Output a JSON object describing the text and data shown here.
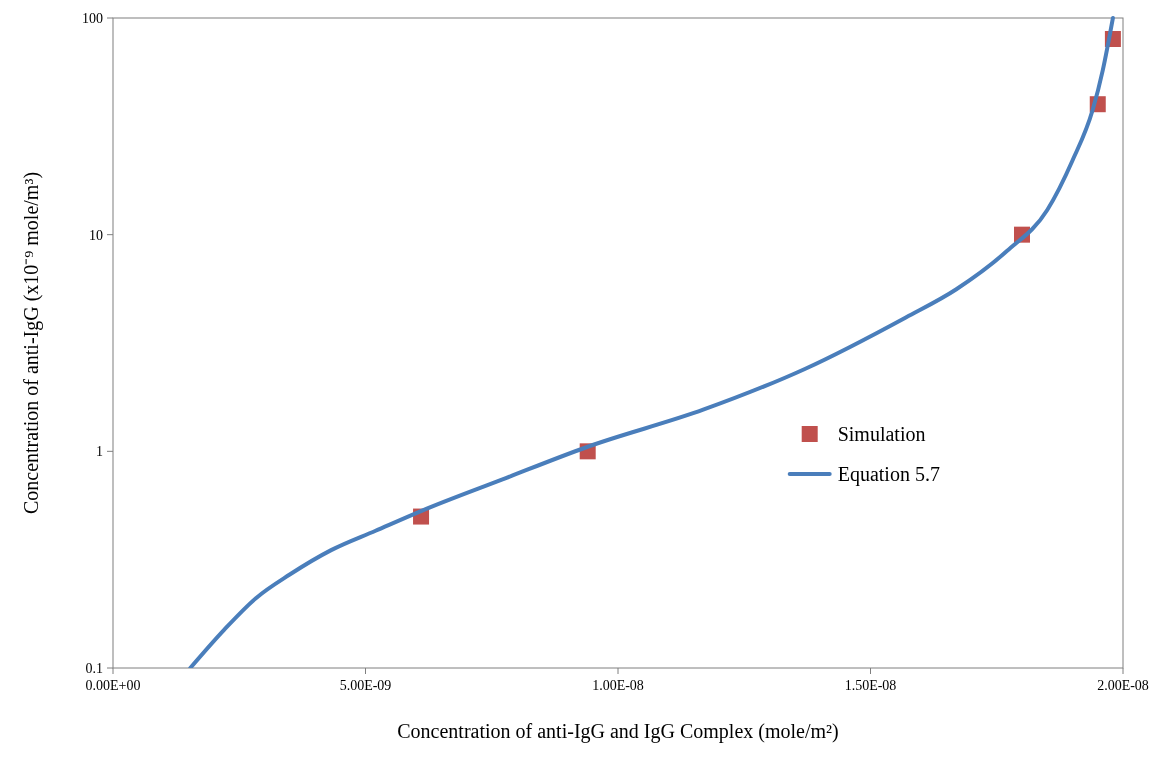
{
  "chart_data": {
    "type": "line",
    "xlabel": "Concentration of anti-IgG and IgG Complex (mole/m²)",
    "ylabel": "Concentration of anti-IgG (x10⁻⁹ mole/m³)",
    "log": "y",
    "xlim": [
      0,
      2e-08
    ],
    "ylim": [
      0.1,
      100
    ],
    "xticks": [
      {
        "value": 0,
        "label": "0.00E+00"
      },
      {
        "value": 5e-09,
        "label": "5.00E-09"
      },
      {
        "value": 1e-08,
        "label": "1.00E-08"
      },
      {
        "value": 1.5e-08,
        "label": "1.50E-08"
      },
      {
        "value": 2e-08,
        "label": "2.00E-08"
      }
    ],
    "yticks": [
      {
        "value": 0.1,
        "label": "0.1"
      },
      {
        "value": 1,
        "label": "1"
      },
      {
        "value": 10,
        "label": "10"
      },
      {
        "value": 100,
        "label": "100"
      }
    ],
    "grid": false,
    "legend": "right",
    "series": [
      {
        "name": "Simulation",
        "type": "scatter",
        "marker": "square",
        "color": "#c0504d",
        "x": [
          6.1e-09,
          9.4e-09,
          1.8e-08,
          1.95e-08,
          1.98e-08
        ],
        "values": [
          0.5,
          1,
          10,
          40,
          80
        ]
      },
      {
        "name": "Equation 5.7",
        "type": "line",
        "marker": "none",
        "line_style": "solid",
        "color": "#4a7ebb",
        "x": [
          1.53e-09,
          2.2e-09,
          2.83e-09,
          3.5e-09,
          4.32e-09,
          5.2e-09,
          6.1e-09,
          7.7e-09,
          9.4e-09,
          1.17e-08,
          1.37e-08,
          1.57e-08,
          1.67e-08,
          1.77e-08,
          1.85e-08,
          1.9e-08,
          1.94e-08,
          1.96e-08,
          1.98e-08
        ],
        "values": [
          0.1,
          0.15,
          0.21,
          0.27,
          0.35,
          0.43,
          0.53,
          0.74,
          1.05,
          1.56,
          2.4,
          4.15,
          5.6,
          8.4,
          13,
          22,
          37.7,
          57.5,
          100
        ]
      }
    ]
  }
}
